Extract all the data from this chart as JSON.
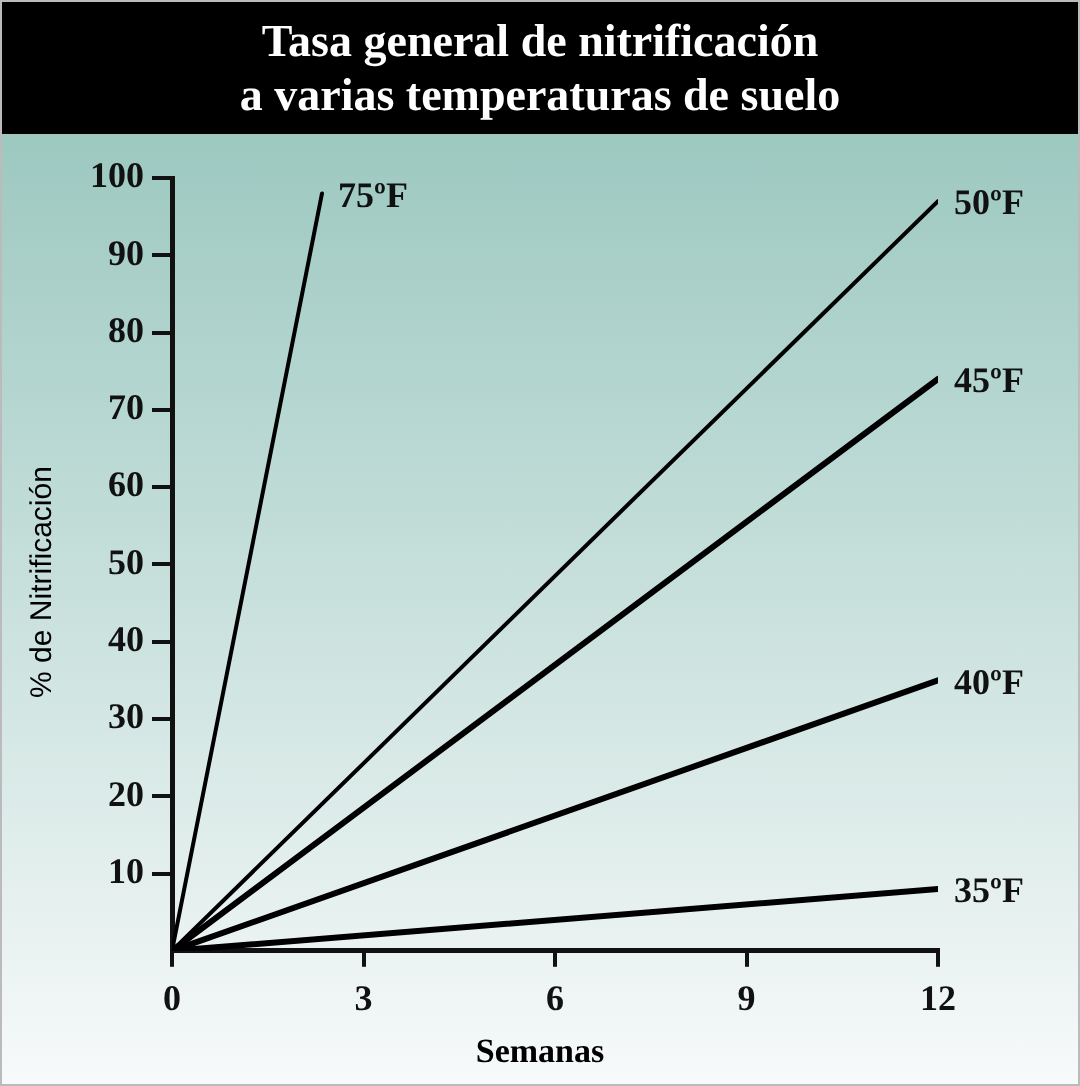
{
  "chart_data": {
    "type": "line",
    "title": "Tasa general de nitrificación\na varias temperaturas de suelo",
    "xlabel": "Semanas",
    "ylabel": "% de Nitrificación",
    "series": [
      {
        "name": "75ºF",
        "color": "#000000",
        "x": [
          0,
          2.35
        ],
        "values": [
          0,
          98
        ]
      },
      {
        "name": "50ºF",
        "color": "#000000",
        "x": [
          0,
          12
        ],
        "values": [
          0,
          97
        ]
      },
      {
        "name": "45ºF",
        "color": "#000000",
        "x": [
          0,
          12
        ],
        "values": [
          0,
          74
        ]
      },
      {
        "name": "40ºF",
        "color": "#000000",
        "x": [
          0,
          12
        ],
        "values": [
          0,
          35
        ]
      },
      {
        "name": "35ºF",
        "color": "#000000",
        "x": [
          0,
          12
        ],
        "values": [
          0,
          8
        ]
      }
    ],
    "xlim": [
      0,
      12
    ],
    "xticks": [
      0,
      3,
      6,
      9,
      12
    ],
    "ylim": [
      0,
      100
    ],
    "yticks": [
      10,
      20,
      30,
      40,
      50,
      60,
      70,
      80,
      90,
      100
    ],
    "grid": false,
    "legend": false,
    "marker": "none",
    "line_style": "solid"
  }
}
